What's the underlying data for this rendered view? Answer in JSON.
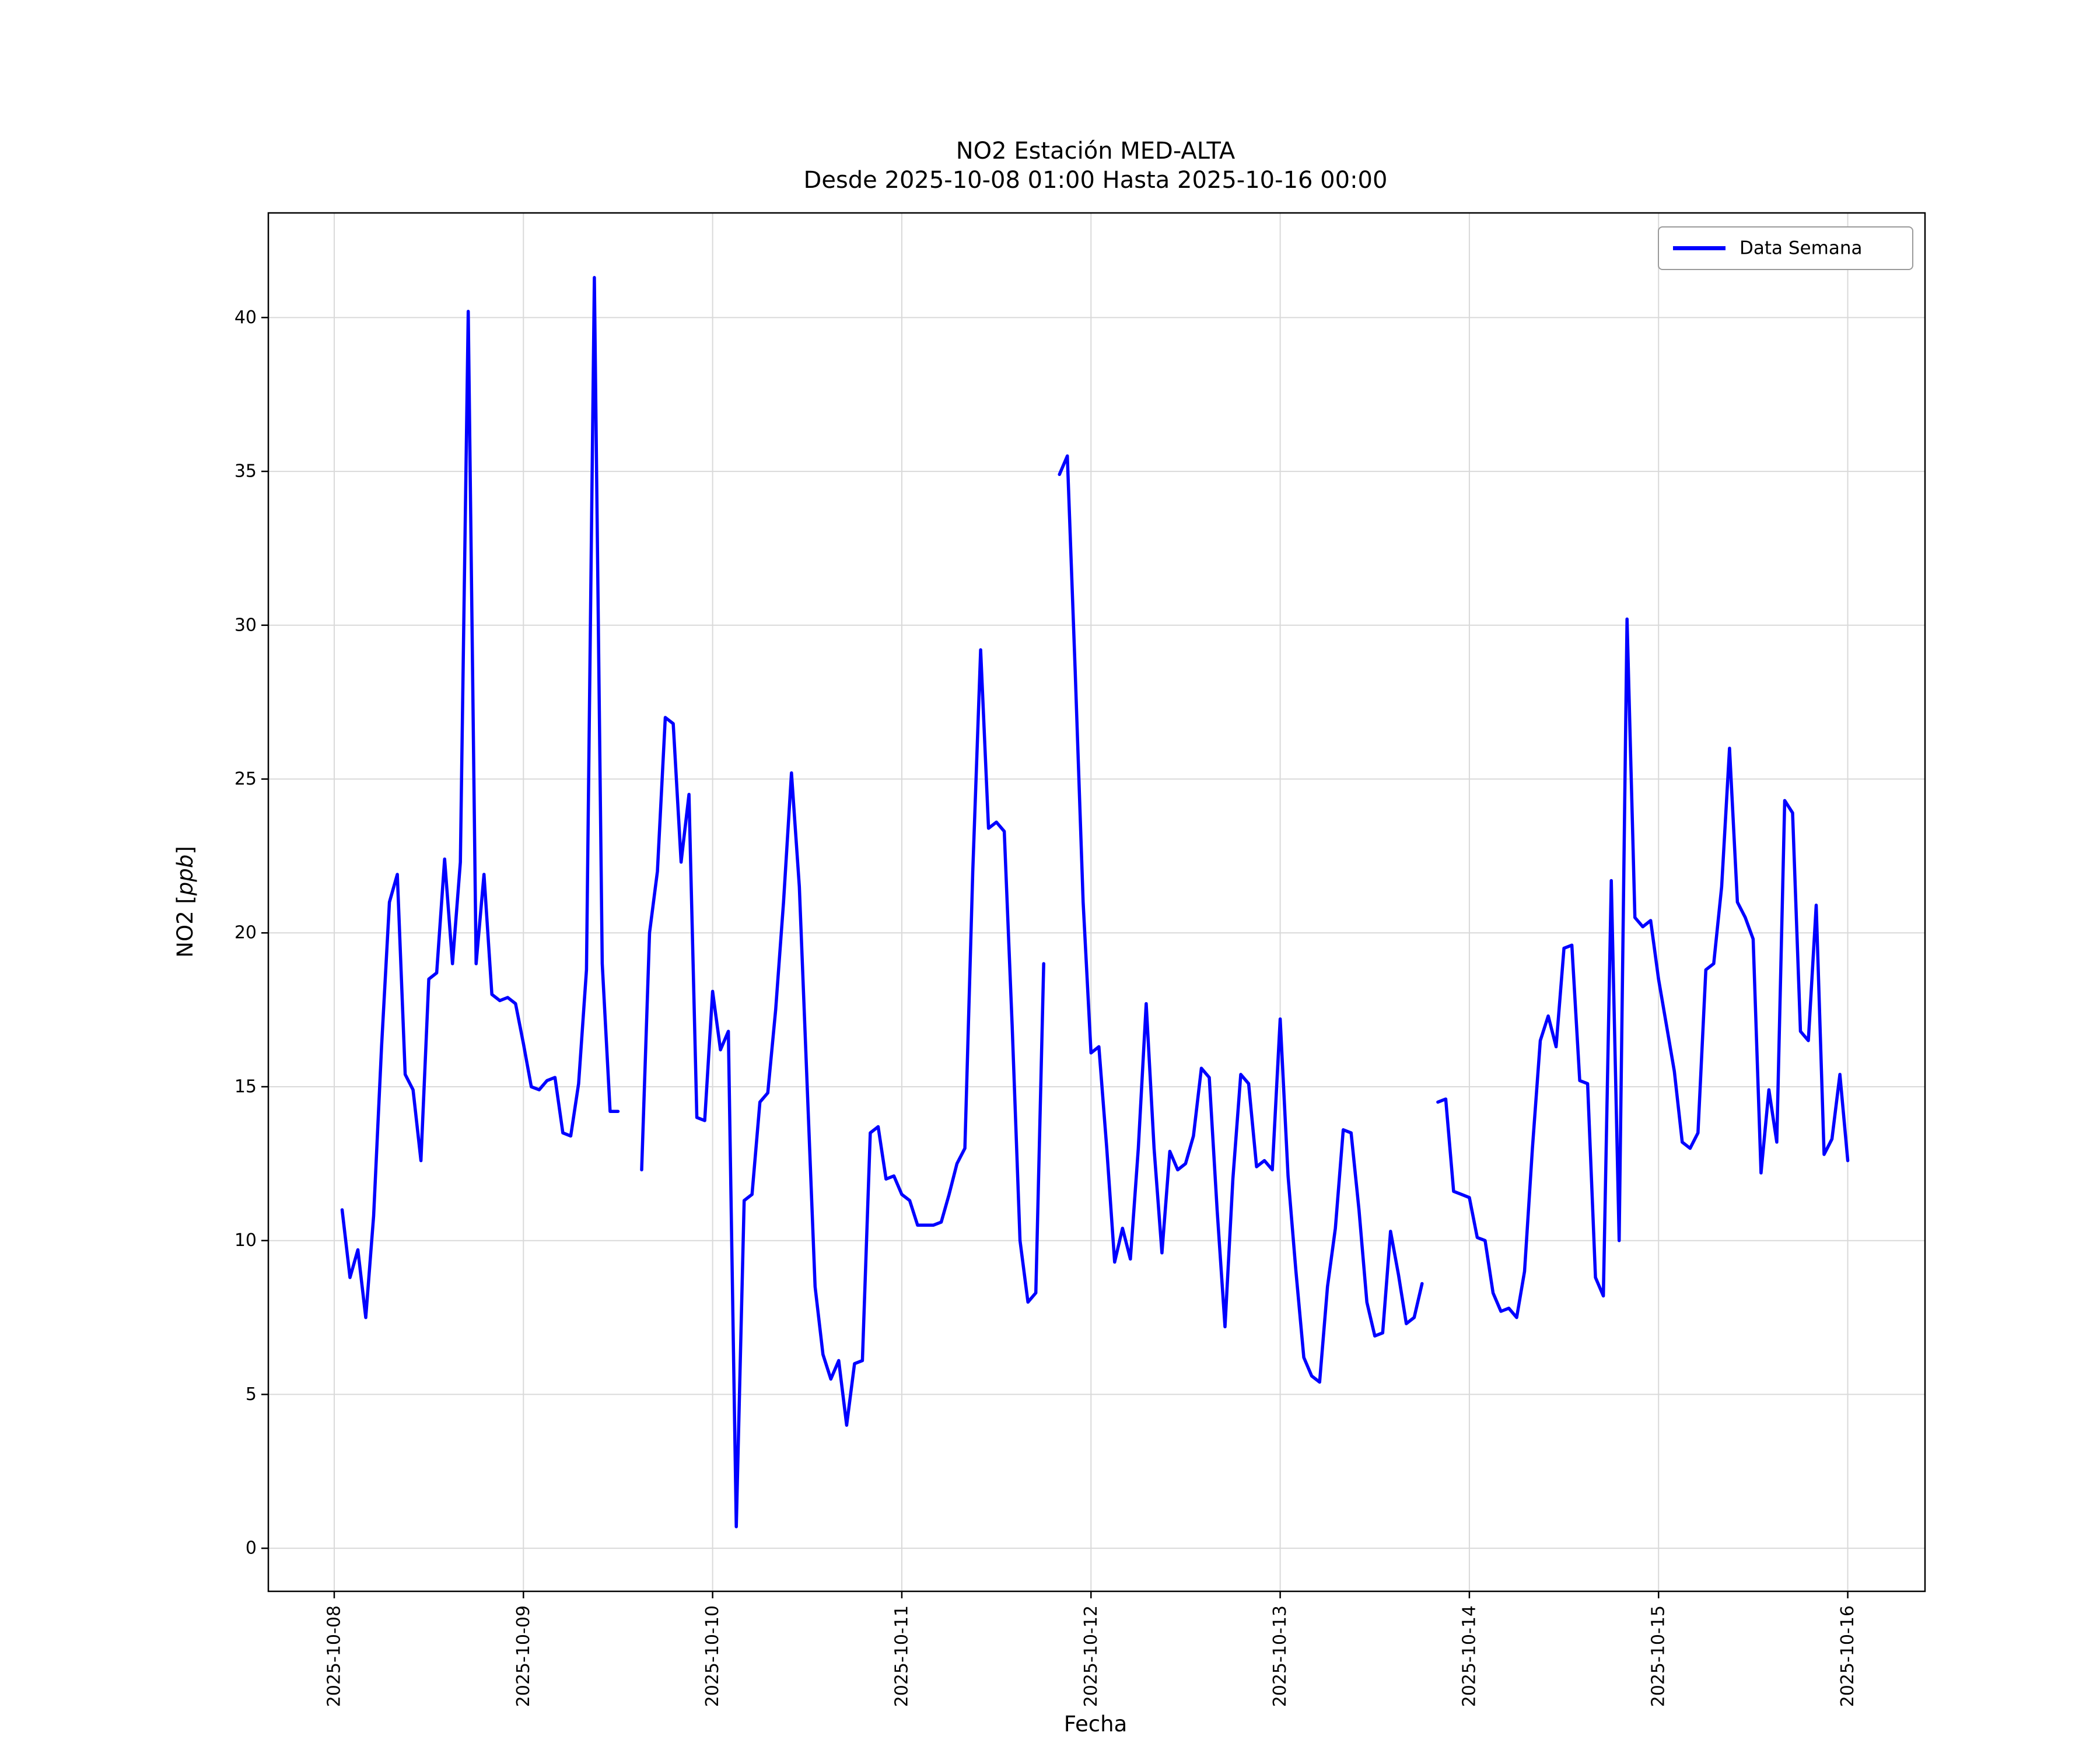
{
  "figure": {
    "title_line1": "NO2 Estación MED-ALTA",
    "title_line2": "Desde 2025-10-08 01:00 Hasta 2025-10-16 00:00",
    "xlabel": "Fecha",
    "ylabel_pre": "NO2 [",
    "ylabel_italic": "ppb",
    "ylabel_post": "]",
    "legend_label": "Data Semana",
    "line_color": "#0000ff",
    "grid_color": "#d9d9d9",
    "spine_color": "#000000",
    "legend_border_color": "#9a9a9a",
    "background_color": "#ffffff"
  },
  "chart_data": {
    "type": "line",
    "title": "NO2 Estación MED-ALTA\nDesde 2025-10-08 01:00 Hasta 2025-10-16 00:00",
    "xlabel": "Fecha",
    "ylabel": "NO2 [ppb]",
    "series_name": "Data Semana",
    "legend_position": "upper right",
    "grid": true,
    "start_timestamp": "2025-10-08 01:00",
    "end_timestamp": "2025-10-16 00:00",
    "interval_hours": 1,
    "start_hour_offset": 1,
    "xlim_hours": [
      -8.36,
      201.8
    ],
    "ylim": [
      -1.4,
      43.4
    ],
    "y_ticks": [
      0,
      5,
      10,
      15,
      20,
      25,
      30,
      35,
      40
    ],
    "x_ticks": {
      "hours": [
        0,
        24,
        48,
        72,
        96,
        120,
        144,
        168,
        192
      ],
      "labels": [
        "2025-10-08",
        "2025-10-09",
        "2025-10-10",
        "2025-10-11",
        "2025-10-12",
        "2025-10-13",
        "2025-10-14",
        "2025-10-15",
        "2025-10-16"
      ]
    },
    "values": [
      11.0,
      8.8,
      9.7,
      7.5,
      10.8,
      16.3,
      21.0,
      21.9,
      15.4,
      14.9,
      12.6,
      18.5,
      18.7,
      22.4,
      19.0,
      22.3,
      40.2,
      19.0,
      21.9,
      18.0,
      17.8,
      17.9,
      17.7,
      16.4,
      15.0,
      14.9,
      15.2,
      15.3,
      13.5,
      13.4,
      15.1,
      18.8,
      41.3,
      19.0,
      14.2,
      14.2,
      null,
      null,
      12.3,
      20.0,
      22.0,
      27.0,
      26.8,
      22.3,
      24.5,
      14.0,
      13.9,
      18.1,
      16.2,
      16.8,
      0.7,
      11.3,
      11.5,
      14.5,
      14.8,
      17.5,
      21.0,
      25.2,
      21.5,
      15.0,
      8.5,
      6.3,
      5.5,
      6.1,
      4.0,
      6.0,
      6.1,
      13.5,
      13.7,
      12.0,
      12.1,
      11.5,
      11.3,
      10.5,
      10.5,
      10.5,
      10.6,
      11.5,
      12.5,
      13.0,
      22.0,
      29.2,
      23.4,
      23.6,
      23.3,
      17.0,
      10.0,
      8.0,
      8.3,
      19.0,
      null,
      34.9,
      35.5,
      28.5,
      21.0,
      16.1,
      16.3,
      13.0,
      9.3,
      10.4,
      9.4,
      13.0,
      17.7,
      13.0,
      9.6,
      12.9,
      12.3,
      12.5,
      13.4,
      15.6,
      15.3,
      11.0,
      7.2,
      12.0,
      15.4,
      15.1,
      12.4,
      12.6,
      12.3,
      17.2,
      12.1,
      9.0,
      6.2,
      5.6,
      5.4,
      8.5,
      10.4,
      13.6,
      13.5,
      11.0,
      8.0,
      6.9,
      7.0,
      10.3,
      8.9,
      7.3,
      7.5,
      8.6,
      null,
      14.5,
      14.6,
      11.6,
      11.5,
      11.4,
      10.1,
      10.0,
      8.3,
      7.7,
      7.8,
      7.5,
      9.0,
      13.0,
      16.5,
      17.3,
      16.3,
      19.5,
      19.6,
      15.2,
      15.1,
      8.8,
      8.2,
      21.7,
      10.0,
      30.2,
      20.5,
      20.2,
      20.4,
      18.5,
      17.0,
      15.5,
      13.2,
      13.0,
      13.5,
      18.8,
      19.0,
      21.5,
      26.0,
      21.0,
      20.5,
      19.8,
      12.2,
      14.9,
      13.2,
      24.3,
      23.9,
      16.8,
      16.5,
      20.9,
      12.8,
      13.3,
      15.4,
      12.6
    ]
  }
}
